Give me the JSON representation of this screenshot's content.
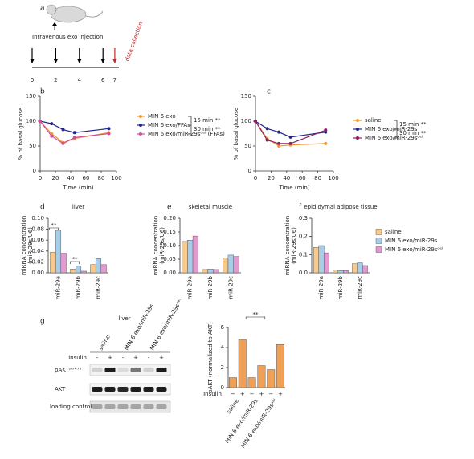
{
  "timeline": {
    "panel": "a",
    "injection_label": "Intravenous exo injection",
    "collection_label": "data collection",
    "days": [
      0,
      2,
      4,
      6,
      7
    ]
  },
  "chart_data": [
    {
      "panel": "b",
      "type": "line",
      "xlabel": "Time (min)",
      "ylabel": "% of basal glucose",
      "x": [
        0,
        15,
        30,
        45,
        90
      ],
      "xlim": [
        0,
        100
      ],
      "xticks": [
        0,
        20,
        40,
        60,
        80,
        100
      ],
      "ylim": [
        0,
        150
      ],
      "yticks": [
        0,
        50,
        100,
        150
      ],
      "legend": true,
      "series": [
        {
          "name": "MIN 6 exo",
          "color": "#f39a2e",
          "values": [
            100,
            75,
            57,
            65,
            77
          ]
        },
        {
          "name": "MIN 6 exo/FFAs",
          "color": "#23238e",
          "values": [
            100,
            95,
            83,
            77,
            85
          ]
        },
        {
          "name": "MIN 6 exo/miR-29sᵈᵉˡ (FFAs)",
          "color": "#d44a9a",
          "values": [
            100,
            70,
            55,
            67,
            75
          ]
        }
      ],
      "annotations": [
        "15 min **",
        "30 min **"
      ]
    },
    {
      "panel": "c",
      "type": "line",
      "xlabel": "Time (min)",
      "ylabel": "% of basal glucose",
      "x": [
        0,
        15,
        30,
        45,
        90
      ],
      "xlim": [
        0,
        100
      ],
      "xticks": [
        0,
        20,
        40,
        60,
        80,
        100
      ],
      "ylim": [
        0,
        150
      ],
      "yticks": [
        0,
        50,
        100,
        150
      ],
      "legend": true,
      "series": [
        {
          "name": "saline",
          "color": "#f39a2e",
          "values": [
            100,
            65,
            50,
            52,
            55
          ]
        },
        {
          "name": "MIN 6 exo/miR-29s",
          "color": "#23238e",
          "values": [
            100,
            85,
            78,
            68,
            78
          ]
        },
        {
          "name": "MIN 6 exo/miR-29sᵈᵉˡ",
          "color": "#8e1f5e",
          "values": [
            100,
            62,
            55,
            55,
            82
          ]
        }
      ],
      "annotations": [
        "15 min **",
        "30 min **"
      ]
    },
    {
      "panel": "d",
      "type": "bar",
      "title": "liver",
      "ylabel": [
        "miRNA concentration",
        "(miR-29s/U6)"
      ],
      "categories": [
        "miR-29a",
        "miR-29b",
        "miR-29c"
      ],
      "ylim": [
        0,
        0.1
      ],
      "yticks": [
        {
          "value": 0,
          "label": "0.00"
        },
        {
          "value": 0.02,
          "label": "0.02"
        },
        {
          "value": 0.04,
          "label": "0.04"
        },
        {
          "value": 0.06,
          "label": "0.06"
        },
        {
          "value": 0.08,
          "label": "0.08"
        },
        {
          "value": 0.1,
          "label": "0.10"
        }
      ],
      "legend": false,
      "series": [
        {
          "name": "saline",
          "color": "#f7c98a",
          "values": [
            0.038,
            0.007,
            0.015
          ]
        },
        {
          "name": "MIN 6 exo/miR-29s",
          "color": "#a8cde8",
          "values": [
            0.078,
            0.012,
            0.026
          ]
        },
        {
          "name": "MIN 6 exo/miR-29sᵈᵉˡ",
          "color": "#e49ad0",
          "values": [
            0.036,
            0.003,
            0.015
          ]
        }
      ],
      "annotations": [
        "**",
        "**"
      ]
    },
    {
      "panel": "e",
      "type": "bar",
      "title": "skeletal muscle",
      "ylabel": [
        "miRNA concentration",
        "(miR-29s/U6)"
      ],
      "categories": [
        "miR-29a",
        "miR-29b",
        "miR-29c"
      ],
      "ylim": [
        0,
        0.2
      ],
      "yticks": [
        {
          "value": 0,
          "label": "0.00"
        },
        {
          "value": 0.05,
          "label": "0.05"
        },
        {
          "value": 0.1,
          "label": "0.10"
        },
        {
          "value": 0.15,
          "label": "0.15"
        },
        {
          "value": 0.2,
          "label": "0.20"
        }
      ],
      "legend": false,
      "series": [
        {
          "name": "saline",
          "color": "#f7c98a",
          "values": [
            0.115,
            0.012,
            0.055
          ]
        },
        {
          "name": "MIN 6 exo/miR-29s",
          "color": "#a8cde8",
          "values": [
            0.12,
            0.014,
            0.065
          ]
        },
        {
          "name": "MIN 6 exo/miR-29sᵈᵉˡ",
          "color": "#e49ad0",
          "values": [
            0.135,
            0.012,
            0.06
          ]
        }
      ]
    },
    {
      "panel": "f",
      "type": "bar",
      "title": "epididymal adipose tissue",
      "ylabel": [
        "miRNA concentration",
        "(miR-29s/U6)"
      ],
      "categories": [
        "miR-29a",
        "miR-29b",
        "miR-29c"
      ],
      "ylim": [
        0,
        0.3
      ],
      "yticks": [
        {
          "value": 0,
          "label": "0.0"
        },
        {
          "value": 0.1,
          "label": "0.1"
        },
        {
          "value": 0.2,
          "label": "0.2"
        },
        {
          "value": 0.3,
          "label": "0.3"
        }
      ],
      "legend": true,
      "series": [
        {
          "name": "saline",
          "color": "#f7c98a",
          "values": [
            0.14,
            0.015,
            0.05
          ]
        },
        {
          "name": "MIN 6 exo/miR-29s",
          "color": "#a8cde8",
          "values": [
            0.15,
            0.012,
            0.055
          ]
        },
        {
          "name": "MIN 6 exo/miR-29sᵈᵉˡ",
          "color": "#e49ad0",
          "values": [
            0.11,
            0.012,
            0.04
          ]
        }
      ]
    },
    {
      "type": "bar",
      "ylabel": [
        "pAKT (normalized to AKT)"
      ],
      "categories": [
        "−",
        "+",
        "−",
        "+",
        "−",
        "+"
      ],
      "row_label": "Insulin",
      "groups": [
        "saline",
        "MIN 6 exo/miR-29s",
        "MIN 6 exo/miR-29sᵈᵉˡ"
      ],
      "ylim": [
        0,
        6
      ],
      "yticks": [
        0,
        2,
        4,
        6
      ],
      "legend": false,
      "series": [
        {
          "name": "pAKT",
          "color": "#f0a055",
          "values": [
            1.0,
            4.8,
            1.0,
            2.2,
            1.8,
            4.3
          ]
        }
      ],
      "annotations": [
        "**"
      ]
    }
  ],
  "blot": {
    "panel": "g",
    "title": "liver",
    "columns": [
      "saline",
      "MIN 6 exo/miR-29s",
      "MIN 6 exo/miR-29sᵈᵉˡ"
    ],
    "row_header": "insulin",
    "signs": [
      "-",
      "+",
      "-",
      "+",
      "-",
      "+"
    ],
    "rows": [
      "pAKTˢᵉʳ⁴⁷³",
      "AKT",
      "loading control"
    ]
  }
}
